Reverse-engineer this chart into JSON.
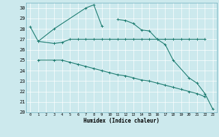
{
  "xlabel": "Humidex (Indice chaleur)",
  "bg_color": "#cce9ed",
  "line_color": "#1a7a6e",
  "grid_color": "#b8d8dc",
  "xlim": [
    -0.5,
    23.5
  ],
  "ylim": [
    20,
    30.5
  ],
  "yticks": [
    20,
    21,
    22,
    23,
    24,
    25,
    26,
    27,
    28,
    29,
    30
  ],
  "xticks": [
    0,
    1,
    2,
    3,
    4,
    5,
    6,
    7,
    8,
    9,
    10,
    11,
    12,
    13,
    14,
    15,
    16,
    17,
    18,
    19,
    20,
    21,
    22,
    23
  ],
  "lines": [
    {
      "x": [
        0,
        1,
        3,
        7,
        8,
        9
      ],
      "y": [
        28.2,
        26.8,
        28.0,
        30.0,
        30.3,
        28.3
      ]
    },
    {
      "x": [
        11,
        12,
        13,
        14,
        15,
        16,
        17,
        18,
        20,
        21,
        22,
        23
      ],
      "y": [
        28.9,
        28.8,
        28.5,
        27.9,
        27.8,
        27.0,
        26.5,
        25.0,
        23.3,
        22.8,
        21.8,
        20.3
      ]
    },
    {
      "x": [
        1,
        3,
        4,
        5,
        6,
        7,
        8,
        9,
        10,
        11,
        12,
        13,
        14,
        15,
        16,
        17,
        18,
        19,
        20,
        21,
        22
      ],
      "y": [
        26.8,
        26.6,
        26.7,
        27.0,
        27.0,
        27.0,
        27.0,
        27.0,
        27.0,
        27.0,
        27.0,
        27.0,
        27.0,
        27.0,
        27.0,
        27.0,
        27.0,
        27.0,
        27.0,
        27.0,
        27.0
      ]
    },
    {
      "x": [
        1,
        3,
        4,
        5,
        6,
        7,
        8,
        9,
        10,
        11,
        12,
        13,
        14,
        15,
        16,
        17,
        18,
        19,
        20,
        21,
        22
      ],
      "y": [
        25.0,
        25.0,
        25.0,
        24.8,
        24.6,
        24.4,
        24.2,
        24.0,
        23.8,
        23.6,
        23.5,
        23.3,
        23.1,
        23.0,
        22.8,
        22.6,
        22.4,
        22.2,
        22.0,
        21.8,
        21.5
      ]
    }
  ]
}
